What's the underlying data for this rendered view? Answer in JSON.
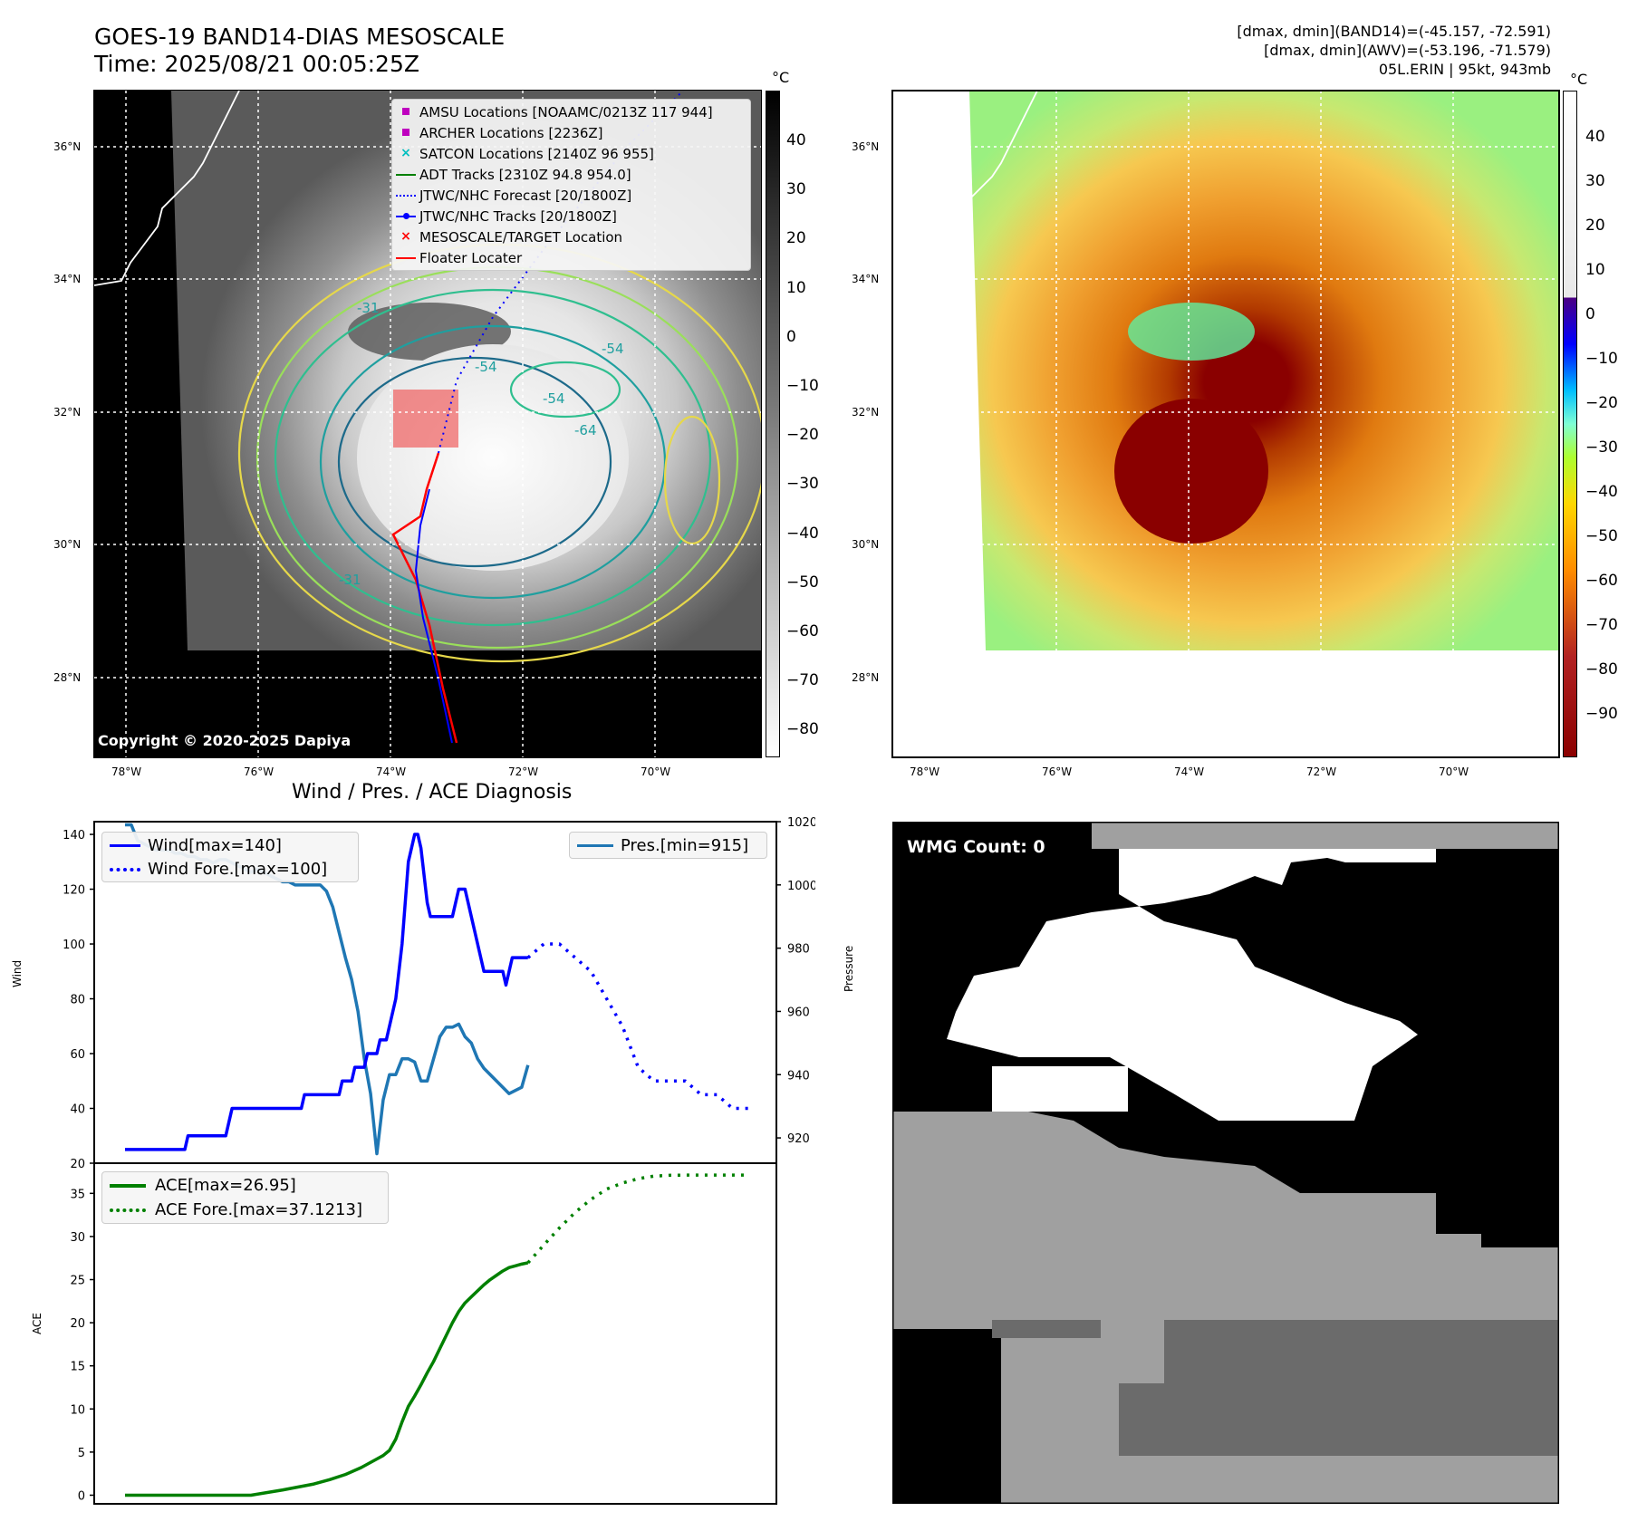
{
  "header": {
    "title_line1": "GOES-19 BAND14-DIAS MESOSCALE",
    "title_line2": "Time: 2025/08/21 00:05:25Z",
    "info_line1": "[dmax, dmin](BAND14)=(-45.157, -72.591)",
    "info_line2": "[dmax, dmin](AWV)=(-53.196, -71.579)",
    "info_line3": "05L.ERIN | 95kt, 943mb"
  },
  "colorbar_unit": "°C",
  "left_colorbar_ticks": [
    "40",
    "30",
    "20",
    "10",
    "0",
    "−10",
    "−20",
    "−30",
    "−40",
    "−50",
    "−60",
    "−70",
    "−80"
  ],
  "right_colorbar_ticks": [
    "40",
    "30",
    "20",
    "10",
    "0",
    "−10",
    "−20",
    "−30",
    "−40",
    "−50",
    "−60",
    "−70",
    "−80",
    "−90"
  ],
  "lat_ticks": [
    "36°N",
    "34°N",
    "32°N",
    "30°N",
    "28°N"
  ],
  "lon_ticks": [
    "78°W",
    "76°W",
    "74°W",
    "72°W",
    "70°W"
  ],
  "copyright": "Copyright © 2020-2025 Dapiya",
  "contour_labels": [
    "-54",
    "-31",
    "-64",
    "-54",
    "-54",
    "-31",
    "-31",
    "-31",
    "-31",
    "-64",
    "-54",
    "-31"
  ],
  "legend": {
    "items": [
      {
        "label": "AMSU Locations [NOAAMC/0213Z 117 944]",
        "symbol": "square",
        "color": "#bf00bf"
      },
      {
        "label": "ARCHER Locations [2236Z]",
        "symbol": "square",
        "color": "#bf00bf"
      },
      {
        "label": "SATCON Locations [2140Z 96 955]",
        "symbol": "x",
        "color": "#00bfbf"
      },
      {
        "label": "ADT Tracks [2310Z 94.8 954.0]",
        "symbol": "line",
        "color": "#008000"
      },
      {
        "label": "JTWC/NHC Forecast [20/1800Z]",
        "symbol": "dotted",
        "color": "#0000ff"
      },
      {
        "label": "JTWC/NHC Tracks [20/1800Z]",
        "symbol": "line-dot",
        "color": "#0000ff"
      },
      {
        "label": "MESOSCALE/TARGET Location",
        "symbol": "x",
        "color": "#ff0000"
      },
      {
        "label": "Floater Locater",
        "symbol": "line",
        "color": "#ff0000"
      }
    ]
  },
  "wmg": {
    "label": "WMG Count: 0"
  },
  "chart_data": [
    {
      "type": "line",
      "title": "Wind / Pres. / ACE Diagnosis",
      "ylabel": "Wind",
      "ylabel_right": "Pressure",
      "ylim": [
        20,
        142
      ],
      "ylim_right": [
        912,
        1020
      ],
      "yticks": [
        20,
        40,
        60,
        80,
        100,
        120,
        140
      ],
      "yticks_right": [
        920,
        940,
        960,
        980,
        1000,
        1020
      ],
      "legend_left": [
        "Wind[max=140]",
        "Wind Fore.[max=100]"
      ],
      "legend_right": [
        "Pres.[min=915]"
      ],
      "series": [
        {
          "name": "Wind[max=140]",
          "color": "#0000ff",
          "style": "solid",
          "x": [
            0,
            1,
            2,
            3,
            4,
            5,
            6,
            7,
            8,
            9,
            10,
            11,
            12,
            13,
            14,
            15,
            16,
            17,
            18,
            19,
            20,
            21,
            22,
            23,
            24,
            25,
            26,
            27,
            28,
            29,
            30,
            31,
            32,
            33,
            34,
            35,
            36,
            37,
            38,
            39,
            40,
            41,
            42,
            43,
            44,
            45,
            46,
            47,
            48,
            49,
            50,
            51,
            52,
            53,
            54,
            55,
            56,
            57,
            58,
            59,
            60,
            61,
            62,
            63,
            64,
            65,
            66,
            67,
            68,
            69,
            70,
            71,
            72,
            73,
            74,
            75,
            76,
            77,
            78,
            79,
            80,
            81,
            82,
            83,
            84,
            85,
            86,
            87,
            88,
            89,
            90,
            91,
            92,
            93,
            94,
            95,
            96,
            97,
            98,
            99,
            100,
            101,
            102,
            103,
            104,
            105,
            106,
            107,
            108,
            109,
            110,
            111,
            112,
            113,
            114,
            115,
            116,
            117,
            118,
            119,
            120,
            121,
            122,
            123,
            124,
            125,
            126,
            127,
            128
          ],
          "values": [
            25,
            25,
            25,
            25,
            25,
            25,
            25,
            25,
            25,
            25,
            25,
            25,
            25,
            25,
            25,
            25,
            25,
            25,
            25,
            25,
            30,
            30,
            30,
            30,
            30,
            30,
            30,
            30,
            30,
            30,
            30,
            30,
            30,
            35,
            40,
            40,
            40,
            40,
            40,
            40,
            40,
            40,
            40,
            40,
            40,
            40,
            40,
            40,
            40,
            40,
            40,
            40,
            40,
            40,
            40,
            40,
            40,
            45,
            45,
            45,
            45,
            45,
            45,
            45,
            45,
            45,
            45,
            45,
            45,
            50,
            50,
            50,
            50,
            55,
            55,
            55,
            55,
            60,
            60,
            60,
            60,
            65,
            65,
            65,
            70,
            75,
            80,
            90,
            100,
            115,
            130,
            135,
            140,
            140,
            135,
            125,
            115,
            110,
            110,
            110,
            110,
            110,
            110,
            110,
            110,
            115,
            120,
            120,
            120,
            115,
            110,
            105,
            100,
            95,
            90,
            90,
            90,
            90,
            90,
            90,
            90,
            85,
            90,
            95,
            95,
            95,
            95,
            95,
            95
          ]
        },
        {
          "name": "Wind Fore.[max=100]",
          "color": "#0000ff",
          "style": "dotted",
          "x": [
            128,
            133,
            138,
            143,
            148,
            153,
            158,
            163,
            168,
            173,
            178,
            183,
            188,
            193,
            198
          ],
          "values": [
            95,
            100,
            100,
            95,
            90,
            80,
            70,
            55,
            50,
            50,
            50,
            45,
            45,
            40,
            40
          ]
        },
        {
          "name": "Pres.[min=915]",
          "color": "#1f77b4",
          "style": "solid",
          "axis": "right",
          "x": [
            0,
            2,
            4,
            6,
            8,
            10,
            12,
            14,
            16,
            18,
            20,
            22,
            24,
            26,
            28,
            30,
            32,
            34,
            36,
            38,
            40,
            42,
            44,
            46,
            48,
            50,
            52,
            54,
            56,
            58,
            60,
            62,
            64,
            66,
            68,
            70,
            72,
            74,
            76,
            78,
            80,
            82,
            84,
            86,
            88,
            90,
            92,
            94,
            96,
            98,
            100,
            102,
            104,
            106,
            108,
            110,
            112,
            114,
            116,
            118,
            120,
            122,
            124,
            126,
            128
          ],
          "values": [
            1019,
            1019,
            1014,
            1013,
            1012,
            1011,
            1011,
            1011,
            1010,
            1010,
            1009,
            1009,
            1008,
            1008,
            1007,
            1008,
            1008,
            1007,
            1006,
            1005,
            1004,
            1005,
            1004,
            1003,
            1002,
            1001,
            1001,
            1000,
            1000,
            1000,
            1000,
            1000,
            998,
            993,
            985,
            977,
            970,
            960,
            945,
            934,
            915,
            932,
            940,
            940,
            945,
            945,
            944,
            938,
            938,
            945,
            952,
            955,
            955,
            956,
            952,
            950,
            945,
            942,
            940,
            938,
            936,
            934,
            935,
            936,
            943
          ]
        }
      ]
    },
    {
      "type": "line",
      "ylabel": "ACE",
      "ylim": [
        -1,
        38.5
      ],
      "yticks": [
        0,
        5,
        10,
        15,
        20,
        25,
        30,
        35
      ],
      "legend": [
        "ACE[max=26.95]",
        "ACE Fore.[max=37.1213]"
      ],
      "series": [
        {
          "name": "ACE[max=26.95]",
          "color": "#008000",
          "style": "solid",
          "x": [
            0,
            10,
            20,
            30,
            40,
            50,
            60,
            65,
            70,
            75,
            80,
            82,
            84,
            86,
            88,
            90,
            92,
            94,
            96,
            98,
            100,
            102,
            104,
            106,
            108,
            110,
            112,
            114,
            116,
            118,
            120,
            122,
            124,
            126,
            128
          ],
          "values": [
            0,
            0,
            0,
            0,
            0,
            0.6,
            1.3,
            1.8,
            2.4,
            3.2,
            4.2,
            4.6,
            5.2,
            6.5,
            8.5,
            10.3,
            11.5,
            12.8,
            14.2,
            15.5,
            17,
            18.5,
            20,
            21.3,
            22.3,
            23,
            23.7,
            24.4,
            25,
            25.5,
            26,
            26.4,
            26.6,
            26.8,
            26.95
          ]
        },
        {
          "name": "ACE Fore.[max=37.1213]",
          "color": "#008000",
          "style": "dotted",
          "x": [
            128,
            133,
            138,
            143,
            148,
            153,
            158,
            163,
            168,
            173,
            178,
            183,
            188,
            193,
            198
          ],
          "values": [
            26.95,
            29,
            31,
            32.8,
            34.3,
            35.5,
            36.2,
            36.7,
            37,
            37.1,
            37.12,
            37.12,
            37.12,
            37.12,
            37.12
          ]
        }
      ]
    }
  ]
}
